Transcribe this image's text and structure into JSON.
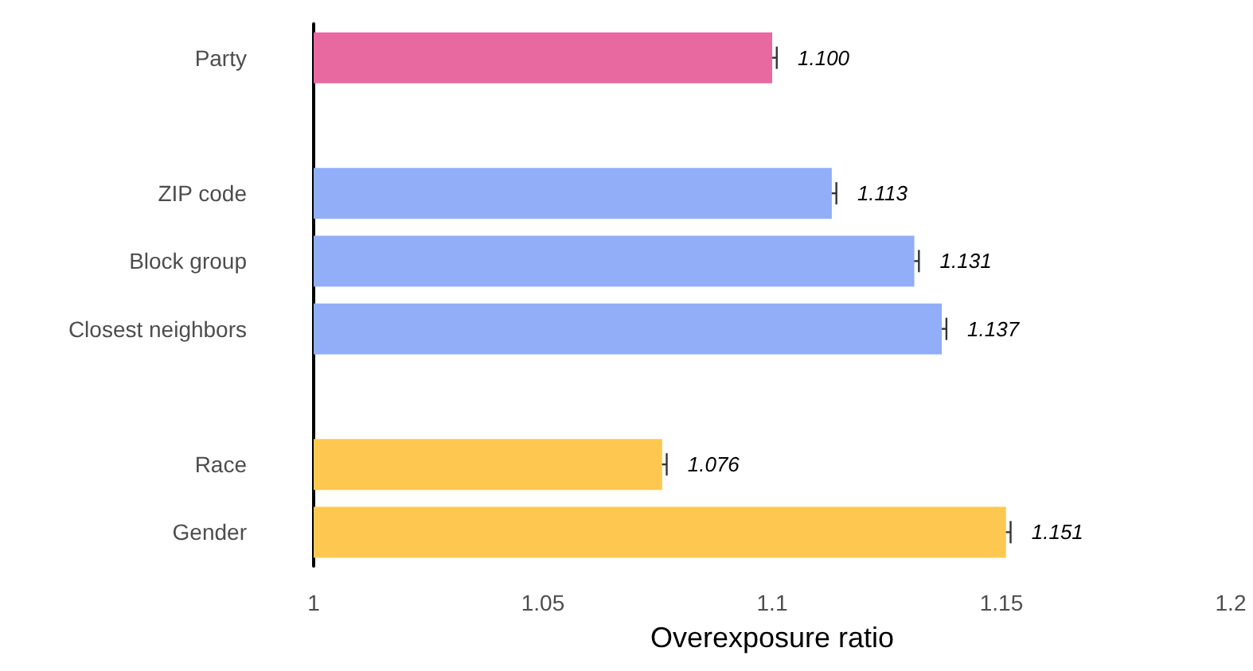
{
  "chart_data": {
    "type": "bar",
    "orientation": "horizontal",
    "xlabel": "Overexposure ratio",
    "categories": [
      "Party",
      null,
      "ZIP code",
      "Block group",
      "Closest neighbors",
      null,
      "Race",
      "Gender"
    ],
    "values": [
      1.1,
      null,
      1.113,
      1.131,
      1.137,
      null,
      1.076,
      1.151
    ],
    "errors": [
      0.001,
      null,
      0.001,
      0.001,
      0.001,
      null,
      0.001,
      0.001
    ],
    "colors": [
      "#e7699f",
      null,
      "#92aef9",
      "#92aef9",
      "#92aef9",
      null,
      "#fec850",
      "#fec850"
    ],
    "value_labels": [
      "1.100",
      null,
      "1.113",
      "1.131",
      "1.137",
      null,
      "1.076",
      "1.151"
    ],
    "xlim": [
      1,
      1.2
    ],
    "xticks": [
      1,
      1.05,
      1.1,
      1.15,
      1.2
    ],
    "grid": false
  }
}
